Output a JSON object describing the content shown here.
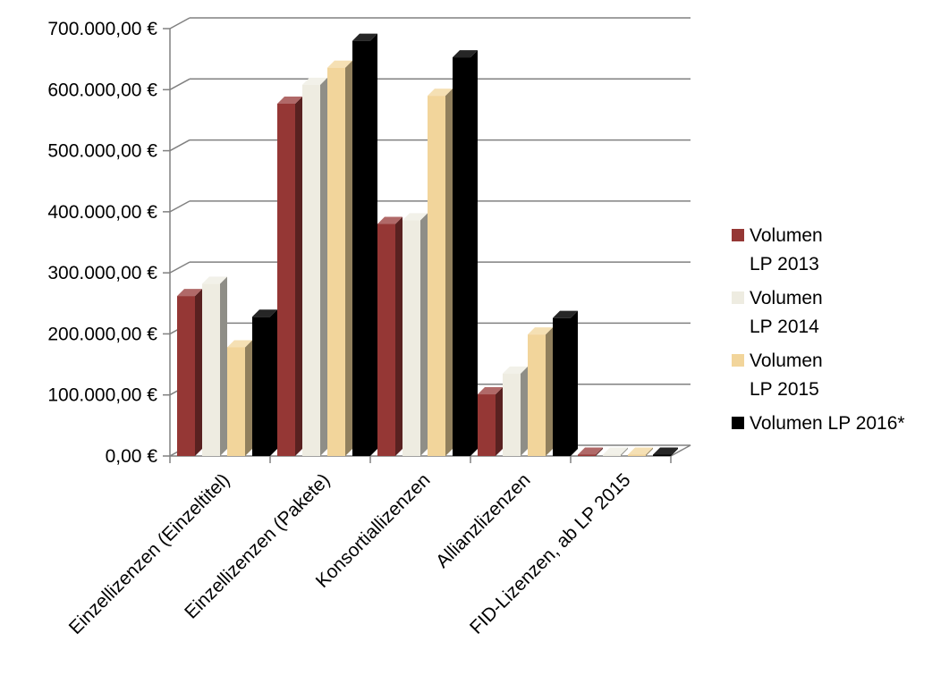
{
  "chart_data": {
    "type": "bar",
    "title": "",
    "xlabel": "",
    "ylabel": "",
    "categories": [
      "Einzellizenzen (Einzeltitel)",
      "Einzellizenzen (Pakete)",
      "Konsortiallizenzen",
      "Allianzlizenzen",
      "FID-Lizenzen, ab LP 2015"
    ],
    "series": [
      {
        "name": "Volumen LP 2013",
        "legend_lines": [
          "Volumen",
          "LP 2013"
        ],
        "color": "#953735",
        "values": [
          262000,
          577000,
          380000,
          101000,
          0
        ]
      },
      {
        "name": "Volumen LP 2014",
        "legend_lines": [
          "Volumen",
          "LP 2014"
        ],
        "color": "#EEECE1",
        "values": [
          282000,
          608000,
          386000,
          135000,
          0
        ]
      },
      {
        "name": "Volumen LP 2015",
        "legend_lines": [
          "Volumen",
          "LP 2015"
        ],
        "color": "#F2D59B",
        "values": [
          178000,
          636000,
          590000,
          199000,
          1000
        ]
      },
      {
        "name": "Volumen LP 2016*",
        "legend_lines": [
          "Volumen LP 2016*"
        ],
        "color": "#000000",
        "values": [
          228000,
          680000,
          653000,
          226000,
          1000
        ]
      }
    ],
    "ylim": [
      0,
      700000
    ],
    "yticks": [
      0,
      100000,
      200000,
      300000,
      400000,
      500000,
      600000,
      700000
    ],
    "ytick_labels": [
      "0,00 €",
      "100.000,00 €",
      "200.000,00 €",
      "300.000,00 €",
      "400.000,00 €",
      "500.000,00 €",
      "600.000,00 €",
      "700.000,00 €"
    ],
    "grid": true,
    "legend_position": "right",
    "style": "3d-clustered-column"
  }
}
